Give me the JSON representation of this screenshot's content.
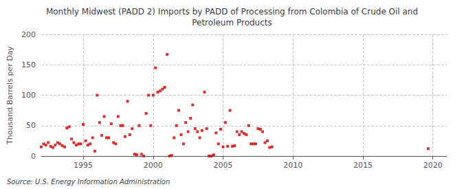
{
  "chart_data": {
    "type": "scatter",
    "title": "Monthly Midwest (PADD 2) Imports by PADD of Processing from Colombia of Crude Oil and\nPetroleum Products",
    "ylabel": "Thousand Barrels per Day",
    "source": "Source: U.S. Energy Information Administration",
    "color": "#cc0000",
    "marker": "square",
    "grid": true,
    "xlim": [
      1992.0,
      2021.0
    ],
    "ylim": [
      0,
      200
    ],
    "yticks": [
      0,
      50,
      100,
      150,
      200
    ],
    "xticks": [
      1995,
      2000,
      2005,
      2010,
      2015,
      2020
    ],
    "x": [
      1992.0,
      1992.17,
      1992.33,
      1992.5,
      1992.67,
      1992.83,
      1993.0,
      1993.17,
      1993.33,
      1993.5,
      1993.67,
      1993.83,
      1994.0,
      1994.17,
      1994.33,
      1994.5,
      1994.67,
      1994.83,
      1995.0,
      1995.17,
      1995.33,
      1995.5,
      1995.67,
      1995.83,
      1996.0,
      1996.17,
      1996.33,
      1996.5,
      1996.67,
      1996.83,
      1997.0,
      1997.17,
      1997.33,
      1997.5,
      1997.67,
      1997.83,
      1998.0,
      1998.17,
      1998.33,
      1998.5,
      1998.67,
      1998.83,
      1999.0,
      1999.17,
      1999.33,
      1999.5,
      1999.67,
      1999.83,
      2000.0,
      2000.17,
      2000.33,
      2000.5,
      2000.67,
      2000.83,
      2001.0,
      2001.17,
      2001.33,
      2001.5,
      2001.67,
      2001.83,
      2002.0,
      2002.17,
      2002.33,
      2002.5,
      2002.67,
      2002.83,
      2003.0,
      2003.17,
      2003.33,
      2003.5,
      2003.67,
      2003.83,
      2004.0,
      2004.17,
      2004.33,
      2004.5,
      2004.67,
      2004.83,
      2005.0,
      2005.17,
      2005.33,
      2005.5,
      2005.67,
      2005.83,
      2006.0,
      2006.17,
      2006.33,
      2006.5,
      2006.67,
      2006.83,
      2007.0,
      2007.17,
      2007.33,
      2007.5,
      2007.67,
      2007.83,
      2008.0,
      2008.17,
      2008.33,
      2008.5,
      2019.67
    ],
    "values": [
      15,
      20,
      18,
      22,
      16,
      14,
      18,
      22,
      20,
      17,
      15,
      46,
      48,
      28,
      22,
      18,
      20,
      20,
      52,
      25,
      18,
      20,
      30,
      8,
      100,
      55,
      34,
      65,
      30,
      30,
      53,
      22,
      20,
      65,
      50,
      50,
      32,
      90,
      35,
      45,
      3,
      2,
      50,
      3,
      0,
      70,
      100,
      50,
      100,
      145,
      105,
      107,
      110,
      113,
      167,
      0,
      1,
      30,
      50,
      75,
      35,
      20,
      55,
      40,
      62,
      84,
      45,
      40,
      30,
      42,
      105,
      45,
      0,
      0,
      2,
      38,
      20,
      44,
      15,
      55,
      16,
      75,
      16,
      17,
      40,
      35,
      40,
      37,
      35,
      50,
      20,
      20,
      20,
      45,
      44,
      40,
      22,
      25,
      14,
      15,
      12
    ]
  }
}
